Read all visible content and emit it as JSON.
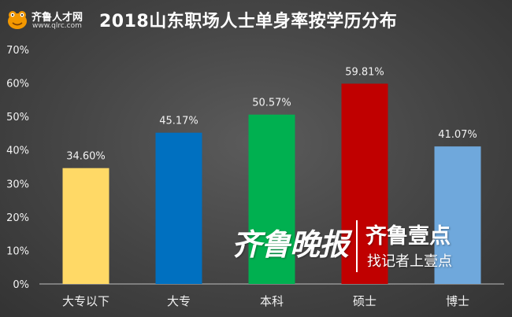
{
  "logo": {
    "name": "齐鲁人才网",
    "url": "www.qlrc.com"
  },
  "watermark": {
    "calligraphy": "齐鲁晚报",
    "brand": "齐鲁壹点",
    "slogan": "找记者上壹点"
  },
  "chart_data": {
    "type": "bar",
    "title": "2018山东职场人士单身率按学历分布",
    "xlabel": "",
    "ylabel": "",
    "categories": [
      "大专以下",
      "大专",
      "本科",
      "硕士",
      "博士"
    ],
    "values": [
      34.6,
      45.17,
      50.57,
      59.81,
      41.07
    ],
    "data_labels": [
      "34.60%",
      "45.17%",
      "50.57%",
      "59.81%",
      "41.07%"
    ],
    "bar_colors": [
      "#ffd966",
      "#0070c0",
      "#00b050",
      "#c00000",
      "#6fa8dc"
    ],
    "y_ticks": [
      "0%",
      "10%",
      "20%",
      "30%",
      "40%",
      "50%",
      "60%",
      "70%"
    ],
    "ylim": [
      0,
      70
    ],
    "grid": false,
    "legend": "none"
  }
}
